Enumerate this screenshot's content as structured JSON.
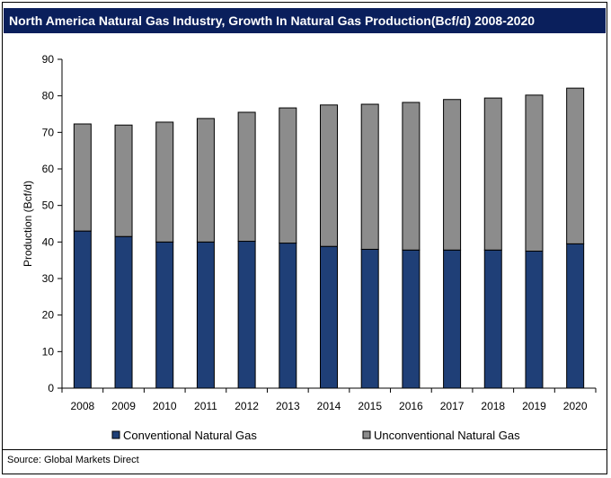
{
  "title": "North America Natural Gas Industry, Growth In Natural Gas Production(Bcf/d) 2008-2020",
  "source": "Source: Global Markets Direct",
  "colors": {
    "title_bg": "#0a1f5c",
    "conventional": "#1f3f77",
    "unconventional": "#8c8c8c"
  },
  "chart_data": {
    "type": "bar",
    "stacked": true,
    "categories": [
      "2008",
      "2009",
      "2010",
      "2011",
      "2012",
      "2013",
      "2014",
      "2015",
      "2016",
      "2017",
      "2018",
      "2019",
      "2020"
    ],
    "series": [
      {
        "name": "Conventional Natural Gas",
        "values": [
          43,
          41.5,
          40,
          40,
          40.2,
          39.7,
          38.8,
          38,
          37.8,
          37.8,
          37.8,
          37.5,
          39.5
        ]
      },
      {
        "name": "Unconventional Natural Gas",
        "values": [
          29.3,
          30.5,
          32.8,
          33.8,
          35.3,
          37,
          38.7,
          39.7,
          40.4,
          41.2,
          41.6,
          42.7,
          42.6
        ]
      }
    ],
    "ylabel": "Production (Bcf/d)",
    "xlabel": "",
    "ylim": [
      0,
      90
    ],
    "yticks": [
      0,
      10,
      20,
      30,
      40,
      50,
      60,
      70,
      80,
      90
    ],
    "grid": false,
    "legend": "bottom"
  }
}
